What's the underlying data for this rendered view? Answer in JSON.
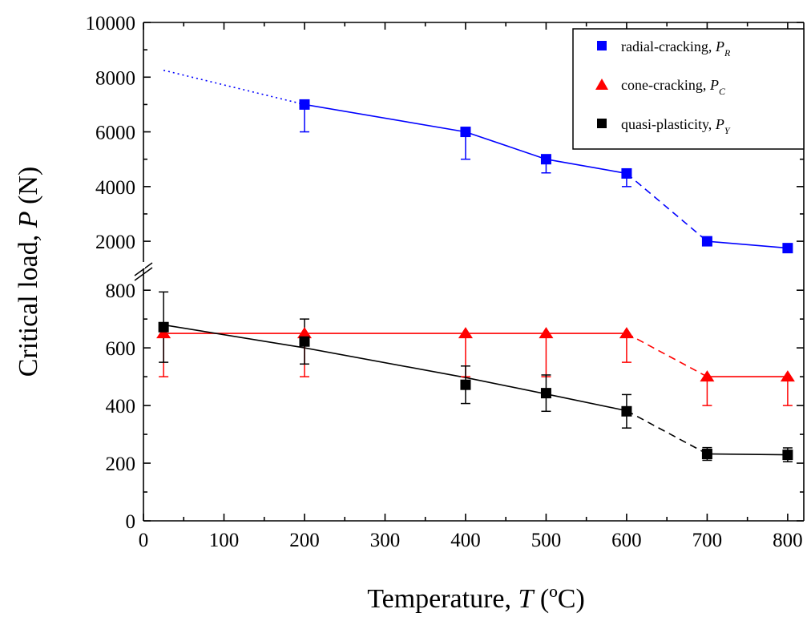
{
  "chart_data": {
    "type": "scatter",
    "title": "",
    "xlabel": {
      "prefix": "Temperature, ",
      "symbol": "T",
      "unit": " (ºC)"
    },
    "ylabel": {
      "prefix": "Critical load, ",
      "symbol": "P",
      "unit": " (N)"
    },
    "xlim": [
      0,
      820
    ],
    "x_ticks": [
      0,
      100,
      200,
      300,
      400,
      500,
      600,
      700,
      800
    ],
    "y_axis_break": true,
    "upper_segment": {
      "ylim": [
        1300,
        10000
      ],
      "ticks": [
        2000,
        4000,
        6000,
        8000,
        10000
      ]
    },
    "lower_segment": {
      "ylim": [
        0,
        870
      ],
      "ticks": [
        0,
        200,
        400,
        600,
        800
      ]
    },
    "legend_position": "top-right",
    "series": [
      {
        "name": "radial-cracking, ",
        "symbol": "P",
        "subscript": "R",
        "color": "#0000ff",
        "marker": "square",
        "segment": "upper",
        "x": [
          200,
          400,
          500,
          600,
          700,
          800
        ],
        "y": [
          7000,
          6000,
          5000,
          4480,
          2000,
          1750
        ],
        "error_low": [
          1000,
          1000,
          500,
          480,
          0,
          0
        ],
        "error_high": [
          0,
          0,
          0,
          0,
          0,
          0
        ],
        "lines": [
          {
            "style": "dotted",
            "points": [
              [
                25,
                8250
              ],
              [
                200,
                7000
              ]
            ]
          },
          {
            "style": "solid",
            "points": [
              [
                200,
                7000
              ],
              [
                400,
                6000
              ],
              [
                500,
                5000
              ],
              [
                600,
                4480
              ]
            ]
          },
          {
            "style": "dashed",
            "points": [
              [
                600,
                4480
              ],
              [
                700,
                2000
              ]
            ]
          },
          {
            "style": "solid",
            "points": [
              [
                700,
                2000
              ],
              [
                800,
                1750
              ]
            ]
          }
        ]
      },
      {
        "name": "cone-cracking, ",
        "symbol": "P",
        "subscript": "C",
        "color": "#ff0000",
        "marker": "triangle",
        "segment": "lower",
        "x": [
          25,
          200,
          400,
          500,
          600,
          700,
          800
        ],
        "y": [
          650,
          650,
          650,
          650,
          650,
          500,
          500
        ],
        "error_low": [
          150,
          150,
          150,
          150,
          100,
          100,
          100
        ],
        "error_high": [
          0,
          0,
          0,
          0,
          0,
          0,
          0
        ],
        "lines": [
          {
            "style": "solid",
            "points": [
              [
                25,
                650
              ],
              [
                600,
                650
              ]
            ]
          },
          {
            "style": "dashed",
            "points": [
              [
                600,
                650
              ],
              [
                700,
                500
              ]
            ]
          },
          {
            "style": "solid",
            "points": [
              [
                700,
                500
              ],
              [
                800,
                500
              ]
            ]
          }
        ]
      },
      {
        "name": "quasi-plasticity, ",
        "symbol": "P",
        "subscript": "Y",
        "color": "#000000",
        "marker": "square",
        "segment": "lower",
        "x": [
          25,
          200,
          400,
          500,
          600,
          700,
          800
        ],
        "y": [
          672,
          622,
          472,
          443,
          380,
          232,
          229
        ],
        "error_low": [
          122,
          78,
          65,
          63,
          58,
          22,
          24
        ],
        "error_high": [
          122,
          78,
          65,
          63,
          58,
          22,
          24
        ],
        "lines": [
          {
            "style": "solid",
            "points": [
              [
                25,
                680
              ],
              [
                200,
                600
              ],
              [
                400,
                497
              ],
              [
                500,
                440
              ],
              [
                600,
                382
              ]
            ]
          },
          {
            "style": "dashed",
            "points": [
              [
                600,
                382
              ],
              [
                700,
                232
              ]
            ]
          },
          {
            "style": "solid",
            "points": [
              [
                700,
                232
              ],
              [
                800,
                229
              ]
            ]
          }
        ]
      }
    ]
  }
}
